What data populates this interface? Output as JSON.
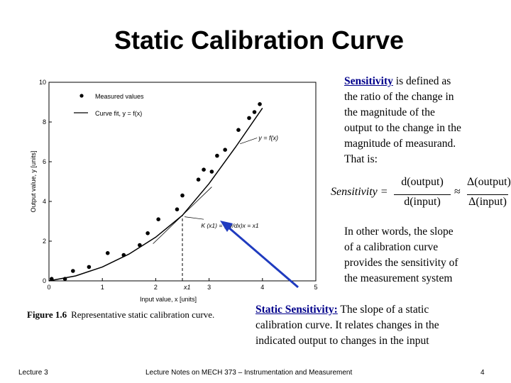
{
  "slide": {
    "title": "Static Calibration Curve",
    "footer_left": "Lecture 3",
    "footer_center": "Lecture Notes on MECH 373 – Instrumentation and Measurement",
    "page_number": "4"
  },
  "figure": {
    "caption_label": "Figure 1.6",
    "caption_text": "Representative static calibration curve.",
    "legend_measured": "Measured values",
    "legend_curve": "Curve fit, y = f(x)",
    "curve_label": "y = f(x)",
    "slope_label": "K (x1) = (dy/dx)x = x1",
    "x1_label": "x1"
  },
  "text": {
    "sensitivity_term": "Sensitivity",
    "sensitivity_def_lines": [
      "is defined as",
      "the ratio of the change in",
      "the magnitude of the",
      "output to the change in the",
      "magnitude of measurand.",
      "That is:"
    ],
    "formula_lhs": "Sensitivity =",
    "formula_num": "d(output)",
    "formula_den": "d(input)",
    "formula_approx": "≈",
    "formula_num2": "Δ(output)",
    "formula_den2": "Δ(input)",
    "other_words_lines": [
      "In other words, the slope",
      "of a calibration curve",
      "provides the sensitivity of",
      "the measurement system"
    ],
    "static_term": "Static Sensitivity:",
    "static_line1": "The slope of a static",
    "static_line2": "calibration curve. It relates changes in the",
    "static_line3": "indicated output to changes in the input"
  },
  "chart_data": {
    "type": "scatter",
    "title": "",
    "xlabel": "Input value, x [units]",
    "ylabel": "Output value, y [units]",
    "xlim": [
      0,
      5
    ],
    "ylim": [
      0,
      10
    ],
    "xticks": [
      0,
      1,
      2,
      3,
      4,
      5
    ],
    "yticks": [
      0,
      2,
      4,
      6,
      8,
      10
    ],
    "x1": 2.5,
    "series": [
      {
        "name": "Measured values",
        "points": [
          [
            0.05,
            0.1
          ],
          [
            0.3,
            0.1
          ],
          [
            0.45,
            0.5
          ],
          [
            0.75,
            0.7
          ],
          [
            1.1,
            1.4
          ],
          [
            1.4,
            1.3
          ],
          [
            1.7,
            1.8
          ],
          [
            1.85,
            2.4
          ],
          [
            2.05,
            3.1
          ],
          [
            2.4,
            3.6
          ],
          [
            2.5,
            4.3
          ],
          [
            2.8,
            5.1
          ],
          [
            2.9,
            5.6
          ],
          [
            3.05,
            5.5
          ],
          [
            3.15,
            6.3
          ],
          [
            3.3,
            6.6
          ],
          [
            3.55,
            7.6
          ],
          [
            3.75,
            8.2
          ],
          [
            3.85,
            8.5
          ],
          [
            3.95,
            8.9
          ]
        ]
      },
      {
        "name": "Curve fit, y = f(x)",
        "points": [
          [
            0,
            0
          ],
          [
            0.5,
            0.25
          ],
          [
            1,
            0.7
          ],
          [
            1.5,
            1.35
          ],
          [
            2,
            2.2
          ],
          [
            2.5,
            3.3
          ],
          [
            3,
            4.9
          ],
          [
            3.5,
            6.75
          ],
          [
            4,
            8.7
          ]
        ]
      }
    ]
  }
}
